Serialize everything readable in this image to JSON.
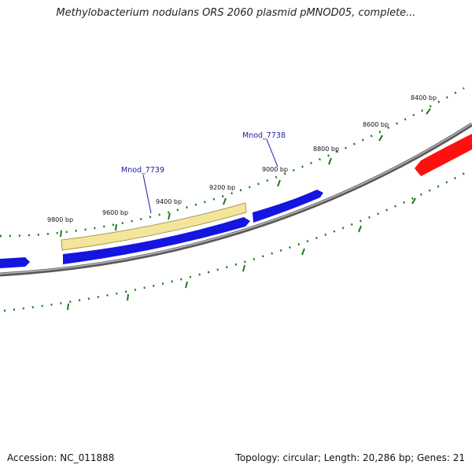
{
  "title": "Methylobacterium nodulans ORS 2060 plasmid pMNOD05, complete...",
  "footer": {
    "accession": "Accession: NC_011888",
    "summary": "Topology: circular; Length: 20,286 bp; Genes: 21"
  },
  "ticks": [
    "8400 bp",
    "8600 bp",
    "8800 bp",
    "9000 bp",
    "9200 bp",
    "9400 bp",
    "9600 bp",
    "9800 bp"
  ],
  "genes": [
    {
      "label": "Mnod_7738",
      "highlighted": false
    },
    {
      "label": "Mnod_7739",
      "highlighted": true
    }
  ],
  "colors": {
    "forward_gene": "#1515e0",
    "reverse_gene": "#ff1010",
    "selected_gene": "#f3e59a",
    "backbone": "#808080",
    "tick": "#1a7a1a"
  }
}
